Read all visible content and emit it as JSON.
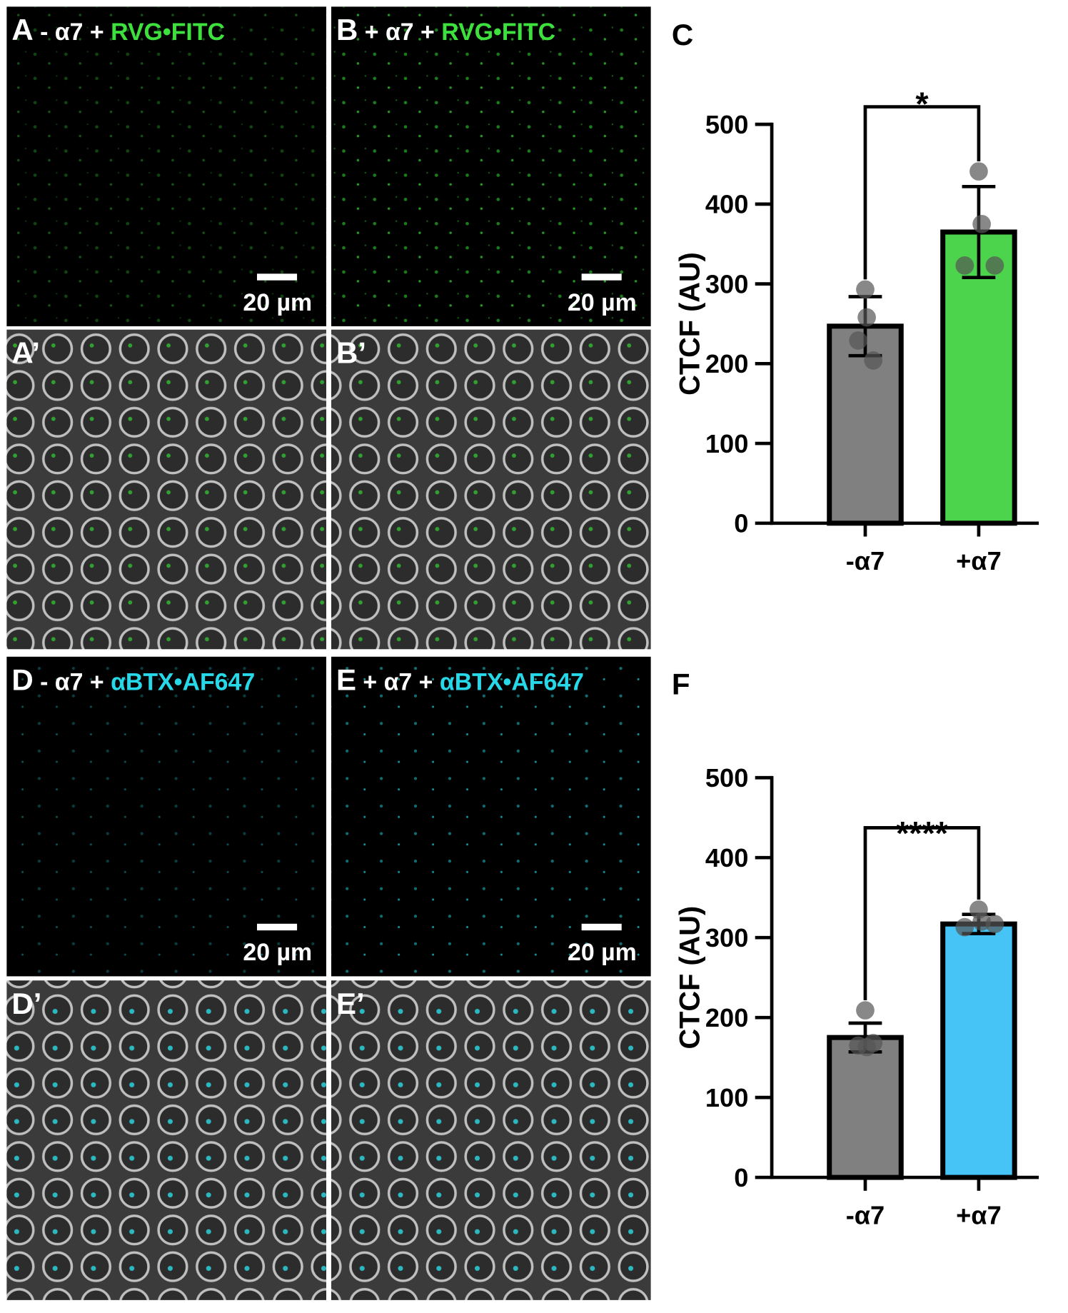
{
  "panels": [
    {
      "label": "A",
      "prefix": "- α7 + ",
      "stain": "RVG•FITC",
      "scale": "20 µm"
    },
    {
      "label": "B",
      "prefix": "+ α7 + ",
      "stain": "RVG•FITC",
      "scale": "20 µm"
    },
    {
      "label": "A’"
    },
    {
      "label": "B’"
    },
    {
      "label": "D",
      "prefix": "- α7 + ",
      "stain": "αBTX•AF647",
      "scale": "20 µm"
    },
    {
      "label": "E",
      "prefix": "+ α7 + ",
      "stain": "αBTX•AF647",
      "scale": "20 µm"
    },
    {
      "label": "D’"
    },
    {
      "label": "E’"
    }
  ],
  "chart_data": [
    {
      "type": "bar",
      "panel_label": "C",
      "y_label": "CTCF (AU)",
      "categories": [
        "-α7",
        "+α7"
      ],
      "values": [
        247,
        365
      ],
      "errors": [
        37,
        57
      ],
      "colors": [
        "#808080",
        "#4cd44c"
      ],
      "points": [
        [
          293,
          258,
          229,
          204
        ],
        [
          441,
          375,
          323,
          323
        ]
      ],
      "point_color": "#555555",
      "significance": "*",
      "ylim": [
        0,
        500
      ],
      "yticks": [
        0,
        100,
        200,
        300,
        400,
        500
      ]
    },
    {
      "type": "bar",
      "panel_label": "F",
      "y_label": "CTCF (AU)",
      "categories": [
        "-α7",
        "+α7"
      ],
      "values": [
        175,
        317
      ],
      "errors": [
        18,
        12
      ],
      "colors": [
        "#808080",
        "#45c4f5"
      ],
      "points": [
        [
          209,
          163,
          165,
          168
        ],
        [
          335,
          320,
          313,
          317
        ]
      ],
      "point_color": "#555555",
      "significance": "****",
      "ylim": [
        0,
        500
      ],
      "yticks": [
        0,
        100,
        200,
        300,
        400,
        500
      ]
    }
  ]
}
